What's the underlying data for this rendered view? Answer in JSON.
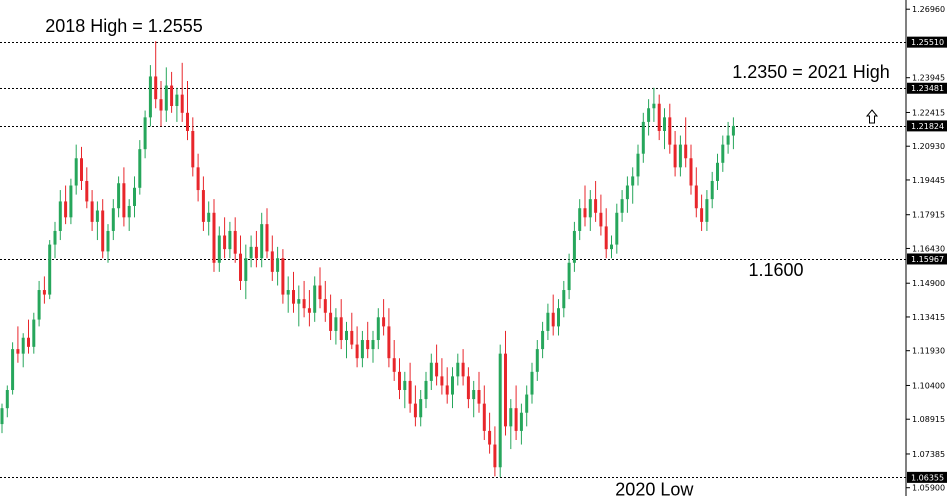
{
  "chart_data": {
    "type": "candlestick",
    "title": "",
    "xlabel": "",
    "ylabel": "",
    "ylim": [
      1.05535,
      1.27365
    ],
    "y_ticks": [
      "1.26960",
      "1.23945",
      "1.22415",
      "1.20930",
      "1.19445",
      "1.17915",
      "1.16430",
      "1.14900",
      "1.13415",
      "1.11930",
      "1.10400",
      "1.08915",
      "1.07385",
      "1.05900"
    ],
    "price_levels": [
      {
        "label": "1.25510",
        "value": 1.2551
      },
      {
        "label": "1.23481",
        "value": 1.23481
      },
      {
        "label": "1.21824",
        "value": 1.21824
      },
      {
        "label": "1.15967",
        "value": 1.15967
      },
      {
        "label": "1.06355",
        "value": 1.06355
      }
    ],
    "annotations": [
      {
        "text": "2018 High = 1.2555",
        "at_index": 24,
        "value": 1.2555
      },
      {
        "text": "1.2350 = 2021 High",
        "at_index": 154,
        "value": 1.235
      },
      {
        "text": "1.1600",
        "at_index": 145,
        "value": 1.16
      },
      {
        "text": "2020 Low",
        "at_index": 121,
        "value": 1.0636
      }
    ],
    "colors": {
      "up": "#26a65b",
      "down": "#e8262b",
      "levels": "#000000",
      "tag_bg": "#000000"
    },
    "candles": [
      [
        1.087,
        1.096,
        1.083,
        1.094
      ],
      [
        1.094,
        1.104,
        1.09,
        1.102
      ],
      [
        1.102,
        1.123,
        1.1,
        1.12
      ],
      [
        1.12,
        1.13,
        1.114,
        1.118
      ],
      [
        1.118,
        1.127,
        1.112,
        1.125
      ],
      [
        1.125,
        1.133,
        1.118,
        1.121
      ],
      [
        1.121,
        1.136,
        1.118,
        1.133
      ],
      [
        1.133,
        1.15,
        1.13,
        1.146
      ],
      [
        1.146,
        1.152,
        1.14,
        1.144
      ],
      [
        1.144,
        1.168,
        1.142,
        1.166
      ],
      [
        1.166,
        1.176,
        1.16,
        1.172
      ],
      [
        1.172,
        1.19,
        1.168,
        1.185
      ],
      [
        1.185,
        1.192,
        1.175,
        1.178
      ],
      [
        1.178,
        1.195,
        1.175,
        1.192
      ],
      [
        1.192,
        1.21,
        1.188,
        1.204
      ],
      [
        1.204,
        1.209,
        1.19,
        1.194
      ],
      [
        1.194,
        1.2,
        1.182,
        1.185
      ],
      [
        1.185,
        1.19,
        1.172,
        1.176
      ],
      [
        1.176,
        1.185,
        1.168,
        1.181
      ],
      [
        1.181,
        1.186,
        1.16,
        1.163
      ],
      [
        1.163,
        1.175,
        1.158,
        1.172
      ],
      [
        1.172,
        1.186,
        1.168,
        1.182
      ],
      [
        1.182,
        1.196,
        1.178,
        1.193
      ],
      [
        1.193,
        1.2,
        1.174,
        1.178
      ],
      [
        1.178,
        1.186,
        1.172,
        1.183
      ],
      [
        1.183,
        1.196,
        1.178,
        1.191
      ],
      [
        1.191,
        1.212,
        1.188,
        1.208
      ],
      [
        1.208,
        1.225,
        1.204,
        1.222
      ],
      [
        1.222,
        1.245,
        1.218,
        1.24
      ],
      [
        1.24,
        1.2555,
        1.226,
        1.23
      ],
      [
        1.23,
        1.238,
        1.218,
        1.225
      ],
      [
        1.225,
        1.244,
        1.22,
        1.236
      ],
      [
        1.236,
        1.242,
        1.224,
        1.227
      ],
      [
        1.227,
        1.235,
        1.22,
        1.232
      ],
      [
        1.232,
        1.246,
        1.22,
        1.224
      ],
      [
        1.224,
        1.238,
        1.212,
        1.216
      ],
      [
        1.216,
        1.222,
        1.196,
        1.2
      ],
      [
        1.2,
        1.206,
        1.185,
        1.19
      ],
      [
        1.19,
        1.196,
        1.172,
        1.176
      ],
      [
        1.176,
        1.185,
        1.17,
        1.18
      ],
      [
        1.18,
        1.186,
        1.154,
        1.158
      ],
      [
        1.158,
        1.174,
        1.154,
        1.17
      ],
      [
        1.17,
        1.178,
        1.16,
        1.164
      ],
      [
        1.164,
        1.176,
        1.16,
        1.172
      ],
      [
        1.172,
        1.178,
        1.158,
        1.162
      ],
      [
        1.162,
        1.17,
        1.146,
        1.15
      ],
      [
        1.15,
        1.166,
        1.142,
        1.16
      ],
      [
        1.16,
        1.17,
        1.156,
        1.165
      ],
      [
        1.165,
        1.172,
        1.156,
        1.16
      ],
      [
        1.16,
        1.18,
        1.156,
        1.175
      ],
      [
        1.175,
        1.182,
        1.16,
        1.163
      ],
      [
        1.163,
        1.17,
        1.15,
        1.154
      ],
      [
        1.154,
        1.165,
        1.148,
        1.16
      ],
      [
        1.16,
        1.164,
        1.14,
        1.144
      ],
      [
        1.144,
        1.152,
        1.136,
        1.146
      ],
      [
        1.146,
        1.154,
        1.136,
        1.14
      ],
      [
        1.14,
        1.148,
        1.13,
        1.142
      ],
      [
        1.142,
        1.15,
        1.134,
        1.138
      ],
      [
        1.138,
        1.146,
        1.13,
        1.136
      ],
      [
        1.136,
        1.152,
        1.132,
        1.148
      ],
      [
        1.148,
        1.156,
        1.138,
        1.142
      ],
      [
        1.142,
        1.15,
        1.132,
        1.136
      ],
      [
        1.136,
        1.144,
        1.124,
        1.128
      ],
      [
        1.128,
        1.138,
        1.122,
        1.134
      ],
      [
        1.134,
        1.142,
        1.12,
        1.124
      ],
      [
        1.124,
        1.132,
        1.116,
        1.128
      ],
      [
        1.128,
        1.136,
        1.12,
        1.122
      ],
      [
        1.122,
        1.13,
        1.112,
        1.116
      ],
      [
        1.116,
        1.128,
        1.112,
        1.124
      ],
      [
        1.124,
        1.132,
        1.116,
        1.12
      ],
      [
        1.12,
        1.128,
        1.114,
        1.124
      ],
      [
        1.124,
        1.138,
        1.12,
        1.134
      ],
      [
        1.134,
        1.142,
        1.126,
        1.13
      ],
      [
        1.13,
        1.138,
        1.112,
        1.116
      ],
      [
        1.116,
        1.124,
        1.106,
        1.11
      ],
      [
        1.11,
        1.116,
        1.098,
        1.102
      ],
      [
        1.102,
        1.11,
        1.094,
        1.106
      ],
      [
        1.106,
        1.114,
        1.092,
        1.096
      ],
      [
        1.096,
        1.104,
        1.086,
        1.09
      ],
      [
        1.09,
        1.102,
        1.086,
        1.098
      ],
      [
        1.098,
        1.11,
        1.094,
        1.106
      ],
      [
        1.106,
        1.118,
        1.102,
        1.114
      ],
      [
        1.114,
        1.122,
        1.104,
        1.108
      ],
      [
        1.108,
        1.116,
        1.1,
        1.104
      ],
      [
        1.104,
        1.112,
        1.096,
        1.1
      ],
      [
        1.1,
        1.112,
        1.094,
        1.108
      ],
      [
        1.108,
        1.118,
        1.104,
        1.114
      ],
      [
        1.114,
        1.12,
        1.104,
        1.108
      ],
      [
        1.108,
        1.112,
        1.094,
        1.098
      ],
      [
        1.098,
        1.106,
        1.09,
        1.102
      ],
      [
        1.102,
        1.11,
        1.092,
        1.096
      ],
      [
        1.096,
        1.104,
        1.08,
        1.084
      ],
      [
        1.084,
        1.092,
        1.074,
        1.078
      ],
      [
        1.078,
        1.086,
        1.064,
        1.068
      ],
      [
        1.068,
        1.122,
        1.0636,
        1.118
      ],
      [
        1.118,
        1.128,
        1.082,
        1.086
      ],
      [
        1.086,
        1.098,
        1.076,
        1.094
      ],
      [
        1.094,
        1.104,
        1.08,
        1.084
      ],
      [
        1.084,
        1.096,
        1.078,
        1.092
      ],
      [
        1.092,
        1.104,
        1.086,
        1.1
      ],
      [
        1.1,
        1.114,
        1.096,
        1.11
      ],
      [
        1.11,
        1.124,
        1.106,
        1.12
      ],
      [
        1.12,
        1.132,
        1.116,
        1.128
      ],
      [
        1.128,
        1.14,
        1.124,
        1.136
      ],
      [
        1.136,
        1.144,
        1.126,
        1.13
      ],
      [
        1.13,
        1.142,
        1.126,
        1.138
      ],
      [
        1.138,
        1.15,
        1.134,
        1.146
      ],
      [
        1.146,
        1.162,
        1.142,
        1.158
      ],
      [
        1.158,
        1.176,
        1.154,
        1.172
      ],
      [
        1.172,
        1.186,
        1.168,
        1.182
      ],
      [
        1.182,
        1.192,
        1.174,
        1.178
      ],
      [
        1.178,
        1.19,
        1.172,
        1.186
      ],
      [
        1.186,
        1.194,
        1.176,
        1.18
      ],
      [
        1.18,
        1.188,
        1.17,
        1.174
      ],
      [
        1.174,
        1.182,
        1.16,
        1.164
      ],
      [
        1.164,
        1.17,
        1.16,
        1.166
      ],
      [
        1.166,
        1.184,
        1.162,
        1.18
      ],
      [
        1.18,
        1.19,
        1.176,
        1.186
      ],
      [
        1.186,
        1.196,
        1.18,
        1.192
      ],
      [
        1.192,
        1.2,
        1.184,
        1.196
      ],
      [
        1.196,
        1.21,
        1.192,
        1.206
      ],
      [
        1.206,
        1.224,
        1.202,
        1.22
      ],
      [
        1.22,
        1.23,
        1.214,
        1.226
      ],
      [
        1.226,
        1.235,
        1.22,
        1.228
      ],
      [
        1.228,
        1.232,
        1.212,
        1.216
      ],
      [
        1.216,
        1.226,
        1.208,
        1.222
      ],
      [
        1.222,
        1.228,
        1.206,
        1.21
      ],
      [
        1.21,
        1.216,
        1.196,
        1.2
      ],
      [
        1.2,
        1.214,
        1.196,
        1.21
      ],
      [
        1.21,
        1.222,
        1.2,
        1.204
      ],
      [
        1.204,
        1.21,
        1.188,
        1.192
      ],
      [
        1.192,
        1.2,
        1.178,
        1.182
      ],
      [
        1.182,
        1.188,
        1.172,
        1.176
      ],
      [
        1.176,
        1.19,
        1.172,
        1.186
      ],
      [
        1.186,
        1.198,
        1.182,
        1.194
      ],
      [
        1.194,
        1.206,
        1.19,
        1.202
      ],
      [
        1.202,
        1.214,
        1.198,
        1.21
      ],
      [
        1.21,
        1.22,
        1.206,
        1.214
      ],
      [
        1.214,
        1.222,
        1.208,
        1.21824
      ]
    ]
  }
}
